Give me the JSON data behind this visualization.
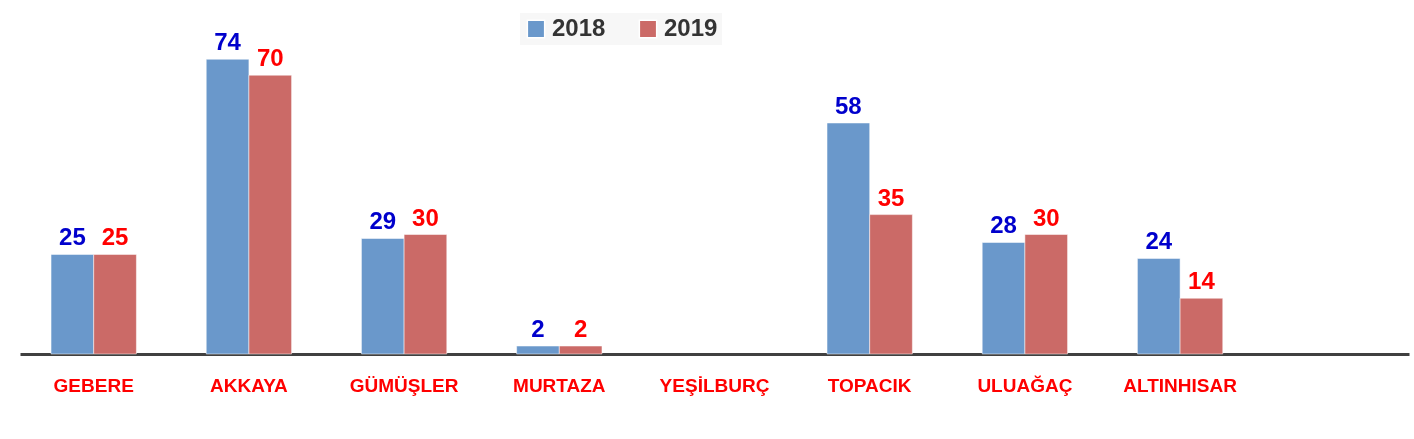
{
  "chart_data": {
    "type": "bar",
    "categories": [
      "GEBERE",
      "AKKAYA",
      "GÜMÜŞLER",
      "MURTAZA",
      "YEŞİLBURÇ",
      "TOPACIK",
      "ULUAĞAÇ",
      "ALTINHISAR",
      null
    ],
    "series": [
      {
        "name": "2018",
        "color": "#6a98cb",
        "values": [
          25,
          74,
          29,
          2,
          null,
          58,
          28,
          24,
          null
        ]
      },
      {
        "name": "2019",
        "color": "#cb6a67",
        "values": [
          25,
          70,
          30,
          2,
          null,
          35,
          30,
          14,
          null
        ]
      }
    ],
    "data_labels": true,
    "legend": "top",
    "grid": false
  }
}
